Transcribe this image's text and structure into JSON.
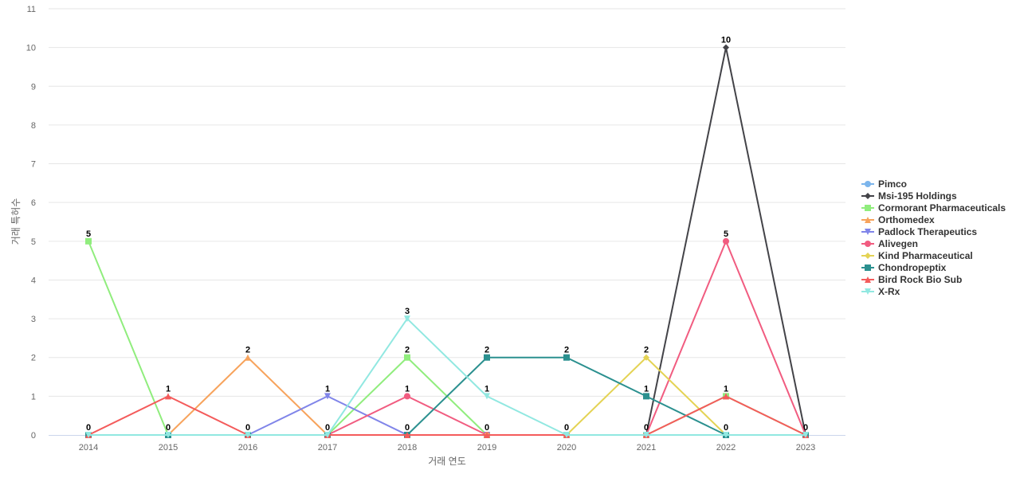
{
  "chart_data": {
    "type": "line",
    "title": "",
    "xlabel": "거래 연도",
    "ylabel": "거래 특허수",
    "x": [
      "2014",
      "2015",
      "2016",
      "2017",
      "2018",
      "2019",
      "2020",
      "2021",
      "2022",
      "2023"
    ],
    "ylim": [
      0,
      11
    ],
    "yticks": [
      0,
      1,
      2,
      3,
      4,
      5,
      6,
      7,
      8,
      9,
      10,
      11
    ],
    "grid": true,
    "legend_position": "right",
    "series": [
      {
        "name": "Pimco",
        "color": "#7cb5ec",
        "marker": "circle",
        "values": [
          0,
          0,
          0,
          0,
          0,
          0,
          0,
          0,
          0,
          0
        ]
      },
      {
        "name": "Msi-195 Holdings",
        "color": "#434348",
        "marker": "diamond",
        "values": [
          0,
          0,
          0,
          0,
          0,
          0,
          0,
          0,
          10,
          0
        ]
      },
      {
        "name": "Cormorant Pharmaceuticals",
        "color": "#90ed7d",
        "marker": "square",
        "values": [
          5,
          0,
          0,
          0,
          2,
          0,
          0,
          0,
          1,
          0
        ]
      },
      {
        "name": "Orthomedex",
        "color": "#f7a35c",
        "marker": "triangle",
        "values": [
          0,
          0,
          2,
          0,
          0,
          0,
          0,
          0,
          0,
          0
        ]
      },
      {
        "name": "Padlock Therapeutics",
        "color": "#8085e9",
        "marker": "triangle-down",
        "values": [
          0,
          0,
          0,
          1,
          0,
          0,
          0,
          0,
          0,
          0
        ]
      },
      {
        "name": "Alivegen",
        "color": "#f15c80",
        "marker": "circle",
        "values": [
          0,
          0,
          0,
          0,
          1,
          0,
          0,
          0,
          5,
          0
        ]
      },
      {
        "name": "Kind Pharmaceutical",
        "color": "#e4d354",
        "marker": "diamond",
        "values": [
          0,
          0,
          0,
          0,
          0,
          0,
          0,
          2,
          0,
          0
        ]
      },
      {
        "name": "Chondropeptix",
        "color": "#2b908f",
        "marker": "square",
        "values": [
          0,
          0,
          0,
          0,
          0,
          2,
          2,
          1,
          0,
          0
        ]
      },
      {
        "name": "Bird Rock Bio Sub",
        "color": "#f45b5b",
        "marker": "triangle",
        "values": [
          0,
          1,
          0,
          0,
          0,
          0,
          0,
          0,
          1,
          0
        ]
      },
      {
        "name": "X-Rx",
        "color": "#91e8e1",
        "marker": "triangle-down",
        "values": [
          0,
          0,
          0,
          0,
          3,
          1,
          0,
          0,
          0,
          0
        ]
      }
    ],
    "data_labels": [
      {
        "x": "2014",
        "value": 0
      },
      {
        "x": "2014",
        "value": 5
      },
      {
        "x": "2015",
        "value": 1
      },
      {
        "x": "2015",
        "value": 0
      },
      {
        "x": "2016",
        "value": 2
      },
      {
        "x": "2016",
        "value": 0
      },
      {
        "x": "2017",
        "value": 1
      },
      {
        "x": "2017",
        "value": 0
      },
      {
        "x": "2018",
        "value": 3
      },
      {
        "x": "2018",
        "value": 2
      },
      {
        "x": "2018",
        "value": 1
      },
      {
        "x": "2018",
        "value": 0
      },
      {
        "x": "2019",
        "value": 2
      },
      {
        "x": "2019",
        "value": 1
      },
      {
        "x": "2019",
        "value": 0
      },
      {
        "x": "2020",
        "value": 2
      },
      {
        "x": "2020",
        "value": 0
      },
      {
        "x": "2021",
        "value": 2
      },
      {
        "x": "2021",
        "value": 1
      },
      {
        "x": "2021",
        "value": 0
      },
      {
        "x": "2022",
        "value": 10
      },
      {
        "x": "2022",
        "value": 5
      },
      {
        "x": "2022",
        "value": 1
      },
      {
        "x": "2022",
        "value": 0
      },
      {
        "x": "2023",
        "value": 0
      }
    ]
  }
}
